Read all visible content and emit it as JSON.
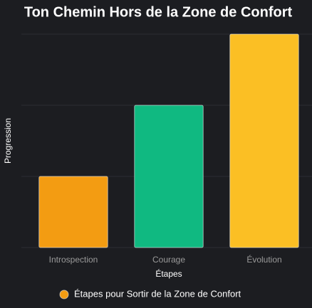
{
  "chart_data": {
    "type": "bar",
    "title": "Ton Chemin Hors de la Zone de Confort",
    "x_label": "Étapes",
    "y_label": "Progression",
    "categories": [
      "Introspection",
      "Courage",
      "Évolution"
    ],
    "series": [
      {
        "name": "Étapes pour Sortir de la Zone de Confort",
        "color": "#f39c12",
        "colors": [
          "#f39c12",
          "#10b981",
          "#fbbf24"
        ],
        "values": [
          1,
          2,
          3
        ]
      }
    ],
    "ylim": [
      0,
      3
    ],
    "yticks": [
      0,
      1,
      2,
      3
    ],
    "grid": true,
    "legend": "bottom"
  }
}
